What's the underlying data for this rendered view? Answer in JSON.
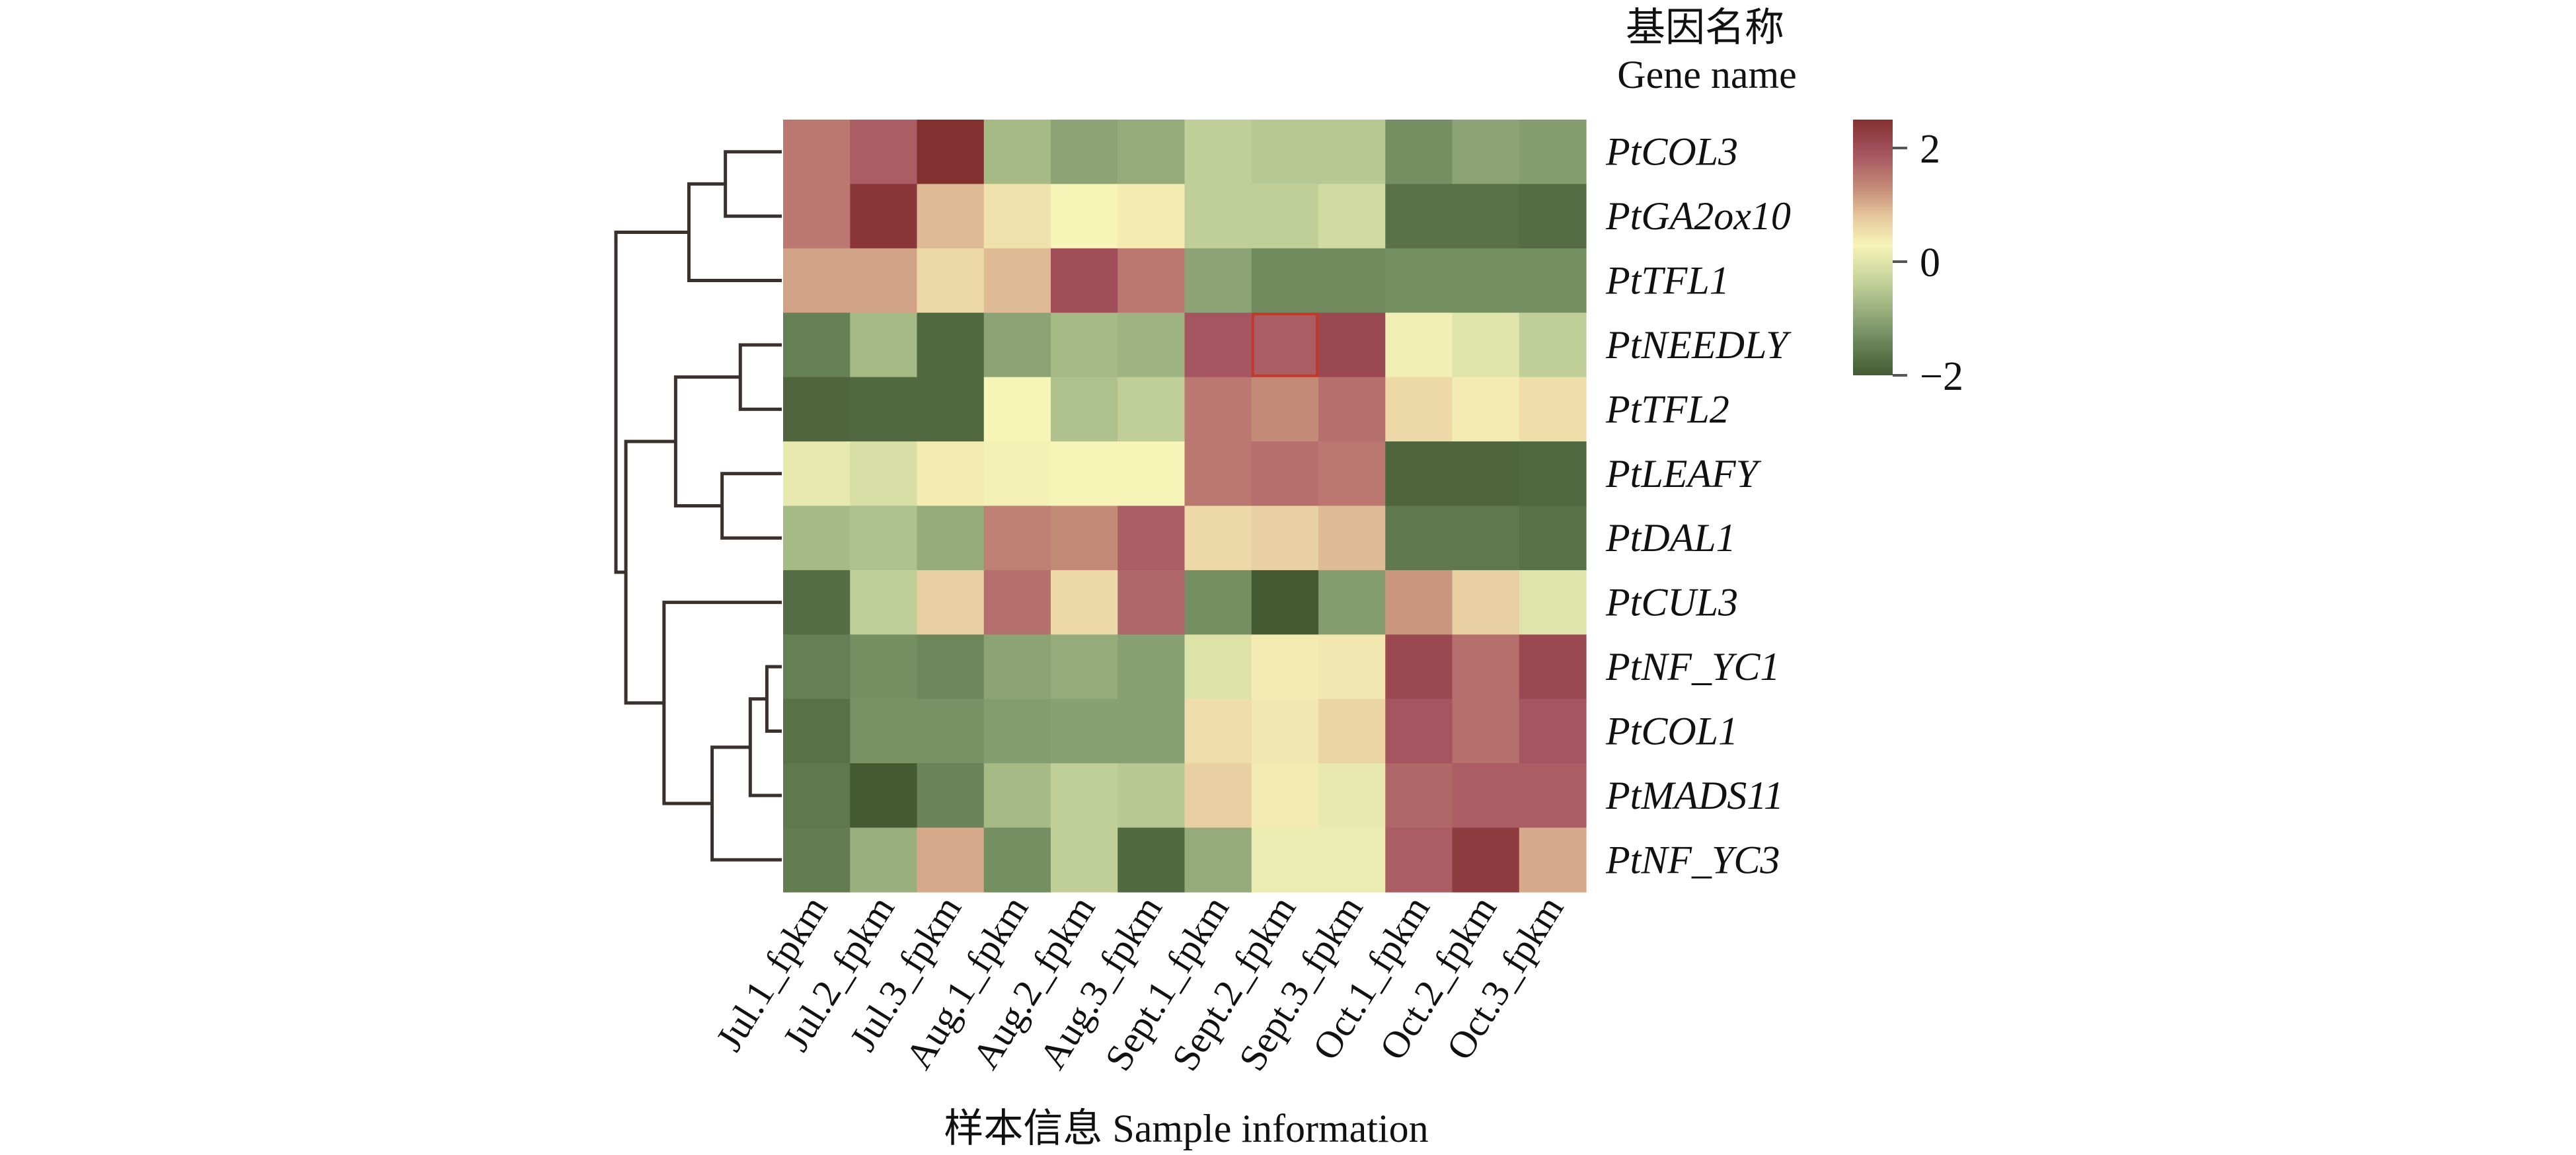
{
  "chart_data": {
    "type": "heatmap",
    "row_title_cn": "基因名称",
    "row_title_en": "Gene name",
    "xlabel": "样本信息 Sample information",
    "rows": [
      "PtCOL3",
      "PtGA2ox10",
      "PtTFL1",
      "PtNEEDLY",
      "PtTFL2",
      "PtLEAFY",
      "PtDAL1",
      "PtCUL3",
      "PtNF_YC1",
      "PtCOL1",
      "PtMADS11",
      "PtNF_YC3"
    ],
    "columns": [
      "Jul.1_fpkm",
      "Jul.2_fpkm",
      "Jul.3_fpkm",
      "Aug.1_fpkm",
      "Aug.2_fpkm",
      "Aug.3_fpkm",
      "Sept.1_fpkm",
      "Sept.2_fpkm",
      "Sept.3_fpkm",
      "Oct.1_fpkm",
      "Oct.2_fpkm",
      "Oct.3_fpkm"
    ],
    "values": [
      [
        1.5,
        1.8,
        2.5,
        -0.7,
        -1.0,
        -0.9,
        -0.4,
        -0.5,
        -0.5,
        -1.3,
        -1.0,
        -1.1
      ],
      [
        1.5,
        2.4,
        0.9,
        0.5,
        0.3,
        0.4,
        -0.4,
        -0.4,
        -0.2,
        -1.7,
        -1.7,
        -1.75
      ],
      [
        1.1,
        1.1,
        0.6,
        0.9,
        2.0,
        1.5,
        -1.0,
        -1.35,
        -1.35,
        -1.3,
        -1.3,
        -1.3
      ],
      [
        -1.5,
        -0.7,
        -1.8,
        -1.0,
        -0.7,
        -0.8,
        1.9,
        1.8,
        2.1,
        0.2,
        0.0,
        -0.4
      ],
      [
        -1.85,
        -1.8,
        -1.8,
        0.3,
        -0.6,
        -0.4,
        1.5,
        1.3,
        1.6,
        0.6,
        0.4,
        0.55
      ],
      [
        0.1,
        -0.1,
        0.4,
        0.25,
        0.3,
        0.3,
        1.5,
        1.6,
        1.5,
        -1.85,
        -1.85,
        -1.8
      ],
      [
        -0.7,
        -0.6,
        -0.9,
        1.4,
        1.3,
        1.8,
        0.6,
        0.7,
        0.9,
        -1.6,
        -1.6,
        -1.7
      ],
      [
        -1.75,
        -0.4,
        0.7,
        1.6,
        0.6,
        1.7,
        -1.3,
        -2.0,
        -1.1,
        1.2,
        0.7,
        0.0
      ],
      [
        -1.5,
        -1.3,
        -1.4,
        -1.0,
        -0.9,
        -1.05,
        -0.05,
        0.4,
        0.45,
        2.1,
        1.6,
        2.1
      ],
      [
        -1.7,
        -1.25,
        -1.25,
        -1.1,
        -1.05,
        -1.05,
        0.55,
        0.45,
        0.65,
        1.9,
        1.6,
        1.9
      ],
      [
        -1.6,
        -2.0,
        -1.45,
        -0.7,
        -0.4,
        -0.5,
        0.7,
        0.4,
        0.1,
        1.7,
        1.8,
        1.8
      ],
      [
        -1.55,
        -0.85,
        1.05,
        -1.3,
        -0.4,
        -1.8,
        -0.9,
        0.15,
        0.15,
        1.8,
        2.3,
        1.05
      ]
    ],
    "highlighted_cell": {
      "row": "PtNEEDLY",
      "column": "Sept.2_fpkm",
      "color": "#c0392b"
    },
    "color_scale": {
      "range": [
        -2,
        2.5
      ],
      "ticks": [
        2,
        0,
        -2
      ],
      "tick_labels": [
        "2",
        "0",
        "−2"
      ],
      "stops": [
        {
          "value": -2.0,
          "color": "#435a33"
        },
        {
          "value": -1.2,
          "color": "#7b9669"
        },
        {
          "value": -0.4,
          "color": "#c0cf98"
        },
        {
          "value": 0.3,
          "color": "#f7f4b8"
        },
        {
          "value": 0.8,
          "color": "#e6c79c"
        },
        {
          "value": 1.3,
          "color": "#c48a78"
        },
        {
          "value": 1.9,
          "color": "#a55560"
        },
        {
          "value": 2.5,
          "color": "#843030"
        }
      ]
    },
    "row_dendrogram": [
      {
        "left": "PtCOL3",
        "right": "PtGA2ox10",
        "height": 0.34,
        "id": "a"
      },
      {
        "left": "a",
        "right": "PtTFL1",
        "height": 0.56,
        "id": "b"
      },
      {
        "left": "PtNEEDLY",
        "right": "PtTFL2",
        "height": 0.25,
        "id": "c"
      },
      {
        "left": "PtLEAFY",
        "right": "PtDAL1",
        "height": 0.36,
        "id": "d"
      },
      {
        "left": "c",
        "right": "d",
        "height": 0.64,
        "id": "e"
      },
      {
        "left": "PtNF_YC1",
        "right": "PtCOL1",
        "height": 0.09,
        "id": "f"
      },
      {
        "left": "f",
        "right": "PtMADS11",
        "height": 0.19,
        "id": "g"
      },
      {
        "left": "g",
        "right": "PtNF_YC3",
        "height": 0.42,
        "id": "h"
      },
      {
        "left": "PtCUL3",
        "right": "h",
        "height": 0.71,
        "id": "i"
      },
      {
        "left": "e",
        "right": "i",
        "height": 0.94,
        "id": "j"
      },
      {
        "left": "b",
        "right": "j",
        "height": 1.0,
        "id": "root"
      }
    ]
  }
}
